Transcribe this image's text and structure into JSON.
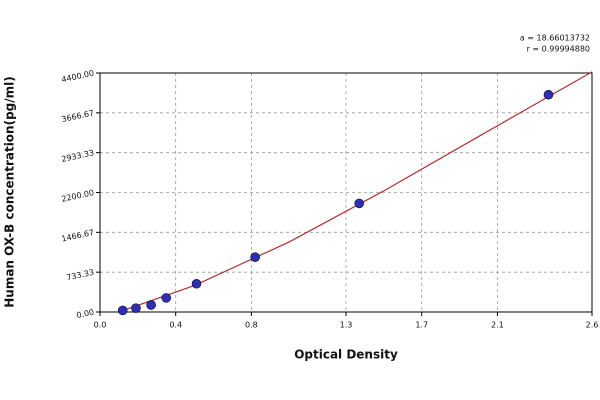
{
  "chart_data": {
    "type": "scatter",
    "annotations": [
      "a = 18.66013732",
      "r = 0.99994880"
    ],
    "x_label": "Optical Density",
    "y_label": "Human OX-B concentration(pg/ml)",
    "x": [
      0.12,
      0.19,
      0.27,
      0.35,
      0.51,
      0.82,
      1.37,
      2.37
    ],
    "values": [
      30,
      70,
      130,
      260,
      520,
      1010,
      2000,
      4000
    ],
    "color": "#2d2db8",
    "fit": {
      "color": "#b03030",
      "x": [
        0.1,
        0.5,
        1.0,
        1.5,
        2.0,
        2.6
      ],
      "values": [
        0,
        490,
        1290,
        2230,
        3230,
        4420
      ]
    },
    "xlim": [
      0,
      2.6
    ],
    "xticks": [
      {
        "value": 0,
        "label": "0.0"
      },
      0.4,
      0.8,
      1.3,
      1.7,
      2.1,
      2.6
    ],
    "ylim": [
      0,
      4400
    ],
    "yticks": [
      {
        "value": 0,
        "label": "0.00"
      },
      733.33,
      {
        "value": 1466.67,
        "label": "1466.67"
      },
      {
        "value": 2200,
        "label": "2200.00"
      },
      2933.33,
      3666.67,
      {
        "value": 4400,
        "label": "4400.00"
      }
    ],
    "grid": true
  }
}
